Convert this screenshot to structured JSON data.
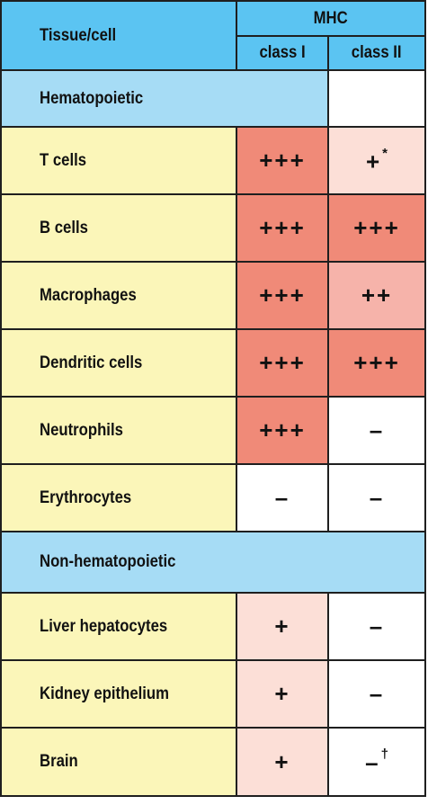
{
  "header": {
    "tissue_label": "Tissue/cell",
    "mhc_label": "MHC",
    "class1_label": "class I",
    "class2_label": "class II"
  },
  "sections": [
    {
      "title": "Hematopoietic",
      "rows": [
        {
          "label": "T cells",
          "class1": "+++",
          "class2": "+",
          "class2_note": "*"
        },
        {
          "label": "B cells",
          "class1": "+++",
          "class2": "+++"
        },
        {
          "label": "Macrophages",
          "class1": "+++",
          "class2": "++"
        },
        {
          "label": "Dendritic cells",
          "class1": "+++",
          "class2": "+++"
        },
        {
          "label": "Neutrophils",
          "class1": "+++",
          "class2": "–"
        },
        {
          "label": "Erythrocytes",
          "class1": "–",
          "class2": "–"
        }
      ]
    },
    {
      "title": "Non-hematopoietic",
      "rows": [
        {
          "label": "Liver hepatocytes",
          "class1": "+",
          "class2": "–"
        },
        {
          "label": "Kidney epithelium",
          "class1": "+",
          "class2": "–"
        },
        {
          "label": "Brain",
          "class1": "+",
          "class2": "–",
          "class2_note": "†"
        }
      ]
    }
  ],
  "colors": {
    "header_blue": "#5bc4f2",
    "section_blue": "#a6dcf5",
    "label_yellow": "#fbf6b9",
    "level_3": "#f08a78",
    "level_2": "#f6b3aa",
    "level_1": "#fcdfd7",
    "level_0": "#ffffff",
    "border": "#1f1f1f"
  }
}
